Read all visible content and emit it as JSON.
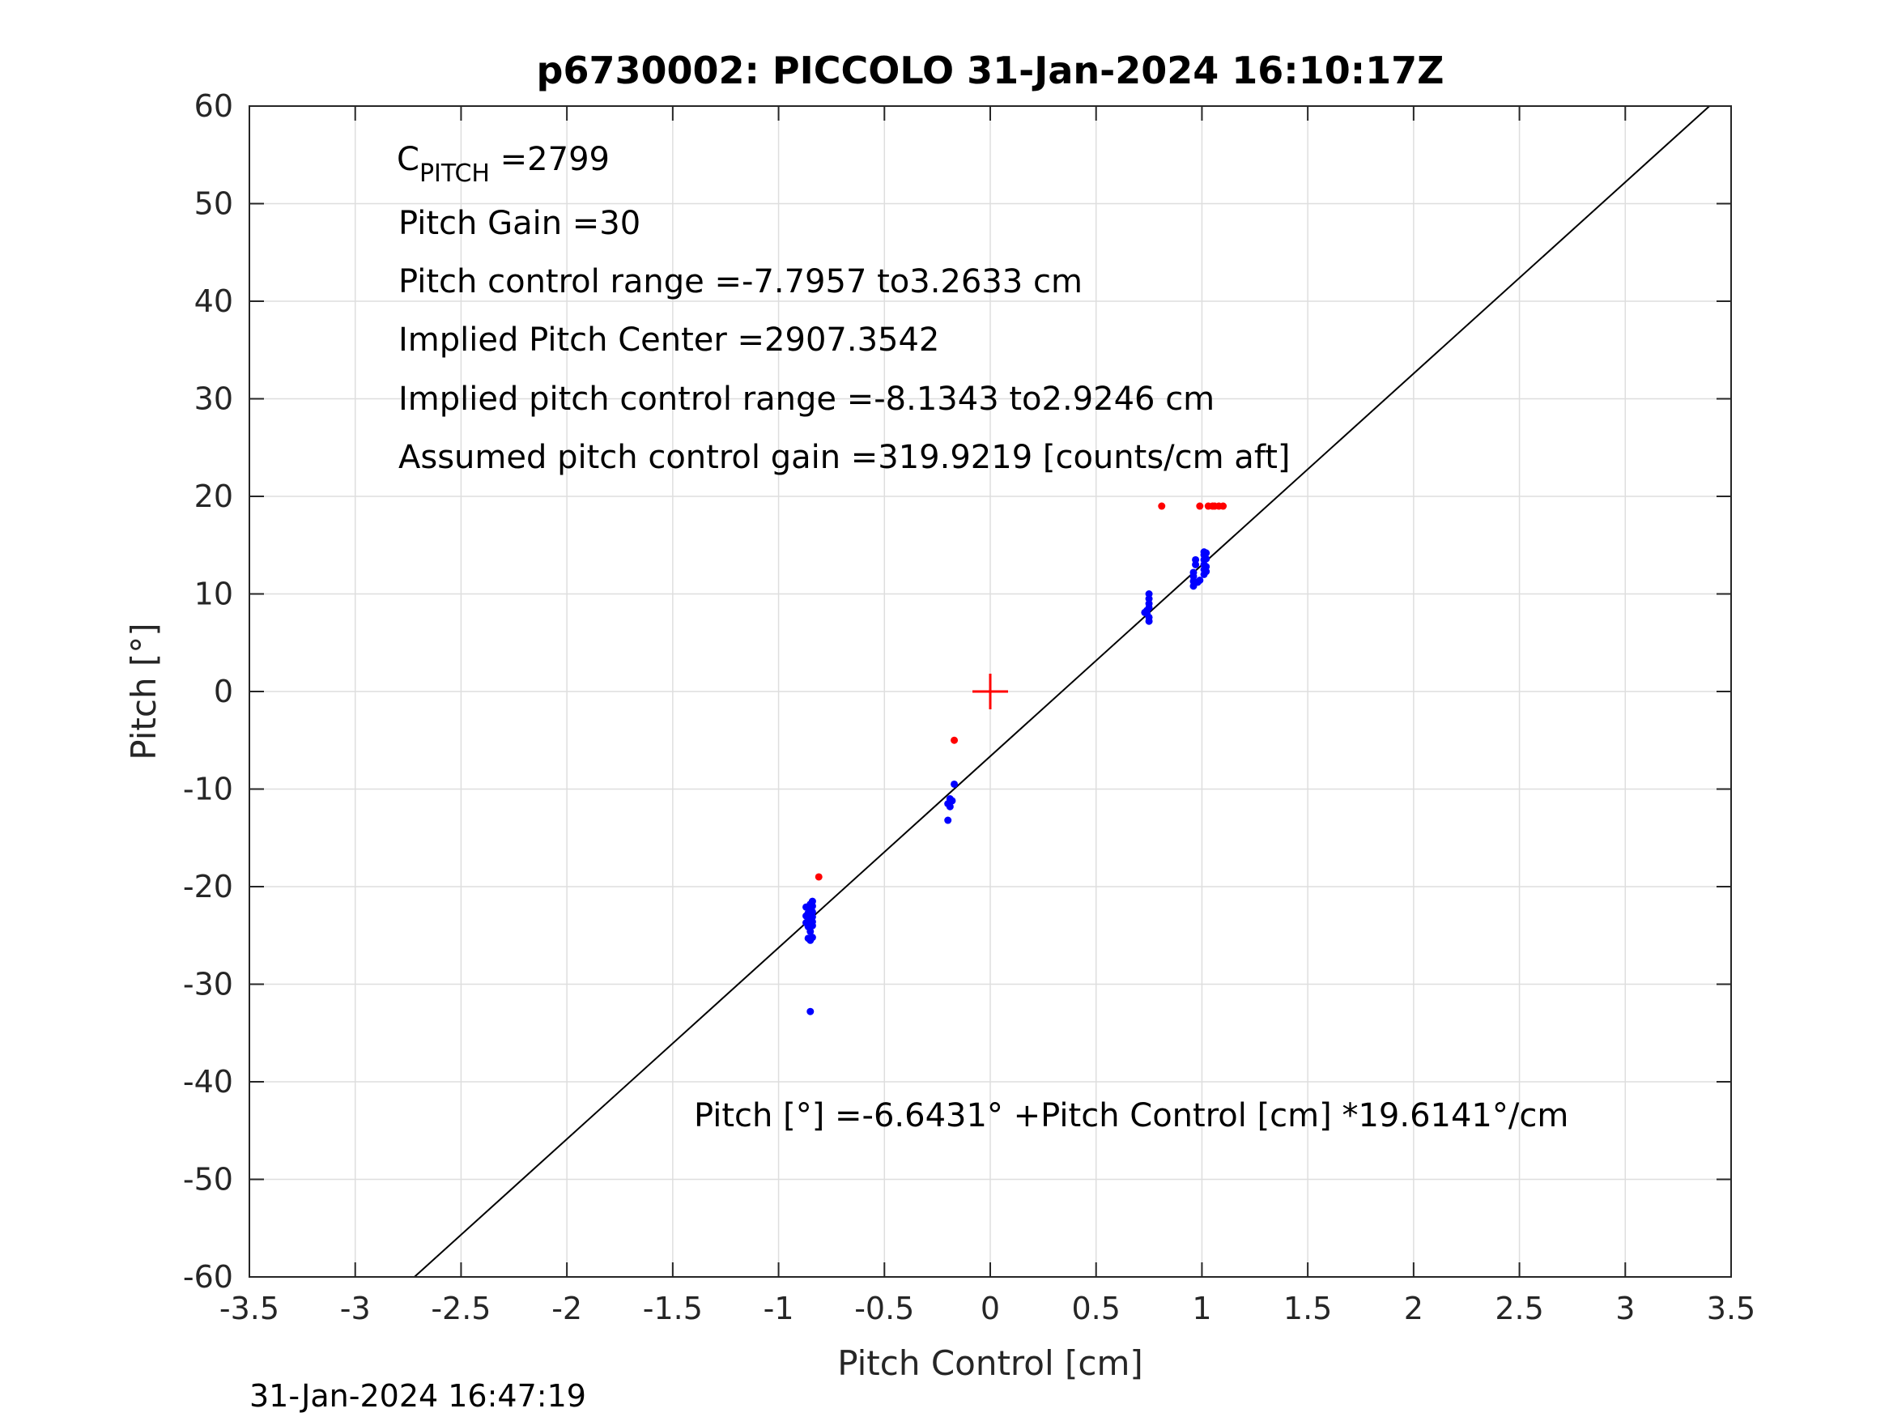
{
  "chart_data": {
    "type": "scatter",
    "title": "p6730002: PICCOLO 31-Jan-2024 16:10:17Z",
    "xlabel": "Pitch Control [cm]",
    "ylabel": "Pitch [°]",
    "xlim": [
      -3.5,
      3.5
    ],
    "ylim": [
      -60,
      60
    ],
    "xticks": [
      -3.5,
      -3,
      -2.5,
      -2,
      -1.5,
      -1,
      -0.5,
      0,
      0.5,
      1,
      1.5,
      2,
      2.5,
      3,
      3.5
    ],
    "yticks": [
      -60,
      -50,
      -40,
      -30,
      -20,
      -10,
      0,
      10,
      20,
      30,
      40,
      50,
      60
    ],
    "xtick_labels": [
      "-3.5",
      "-3",
      "-2.5",
      "-2",
      "-1.5",
      "-1",
      "-0.5",
      "0",
      "0.5",
      "1",
      "1.5",
      "2",
      "2.5",
      "3",
      "3.5"
    ],
    "ytick_labels": [
      "-60",
      "-50",
      "-40",
      "-30",
      "-20",
      "-10",
      "0",
      "10",
      "20",
      "30",
      "40",
      "50",
      "60"
    ],
    "grid": true,
    "colors": {
      "blue": "#0000ff",
      "red": "#ff0000",
      "fit": "#000000",
      "grid": "#dedede",
      "axis": "#262626"
    },
    "annotations": {
      "c_pitch_main": "C",
      "c_pitch_sub": "PITCH",
      "c_pitch_value": " =2799",
      "pitch_gain": "Pitch Gain =30",
      "pitch_control_range": "Pitch control range =-7.7957 to3.2633 cm",
      "implied_center": "Implied Pitch Center =2907.3542",
      "implied_range": "Implied pitch control range =-8.1343 to2.9246 cm",
      "assumed_gain": "Assumed pitch control gain =319.9219 [counts/cm aft]",
      "fit_equation": "Pitch [°] =-6.6431° +Pitch Control [cm] *19.6141°/cm"
    },
    "fit_line": {
      "intercept": -6.6431,
      "slope": 19.6141
    },
    "center_marker": {
      "x": 0,
      "y": 0
    },
    "series": [
      {
        "marker": "dot",
        "color": "blue",
        "points": [
          [
            -0.85,
            -21.8
          ],
          [
            -0.85,
            -22.3
          ],
          [
            -0.86,
            -22.7
          ],
          [
            -0.85,
            -23.0
          ],
          [
            -0.86,
            -23.4
          ],
          [
            -0.85,
            -23.8
          ],
          [
            -0.86,
            -24.1
          ],
          [
            -0.85,
            -24.6
          ],
          [
            -0.84,
            -21.5
          ],
          [
            -0.84,
            -22.0
          ],
          [
            -0.84,
            -22.6
          ],
          [
            -0.84,
            -23.1
          ],
          [
            -0.84,
            -23.6
          ],
          [
            -0.84,
            -24.0
          ],
          [
            -0.87,
            -22.1
          ],
          [
            -0.87,
            -23.0
          ],
          [
            -0.87,
            -23.7
          ],
          [
            -0.86,
            -25.3
          ],
          [
            -0.84,
            -25.2
          ],
          [
            -0.85,
            -25.5
          ],
          [
            -0.85,
            -32.8
          ],
          [
            -0.19,
            -11.0
          ],
          [
            -0.19,
            -11.3
          ],
          [
            -0.2,
            -11.5
          ],
          [
            -0.19,
            -11.8
          ],
          [
            -0.18,
            -11.2
          ],
          [
            -0.17,
            -9.5
          ],
          [
            -0.2,
            -13.2
          ],
          [
            0.74,
            8.0
          ],
          [
            0.74,
            8.3
          ],
          [
            0.75,
            7.2
          ],
          [
            0.75,
            7.6
          ],
          [
            0.75,
            8.6
          ],
          [
            0.75,
            9.0
          ],
          [
            0.75,
            9.5
          ],
          [
            0.75,
            10.0
          ],
          [
            0.73,
            8.1
          ],
          [
            0.96,
            10.8
          ],
          [
            0.96,
            11.3
          ],
          [
            0.96,
            11.8
          ],
          [
            0.96,
            12.2
          ],
          [
            0.97,
            13.0
          ],
          [
            0.97,
            13.5
          ],
          [
            0.98,
            11.2
          ],
          [
            0.99,
            11.4
          ],
          [
            1.01,
            12.0
          ],
          [
            1.01,
            12.5
          ],
          [
            1.01,
            13.0
          ],
          [
            1.01,
            13.5
          ],
          [
            1.01,
            14.0
          ],
          [
            1.01,
            14.3
          ],
          [
            1.02,
            12.3
          ],
          [
            1.02,
            12.8
          ],
          [
            1.02,
            13.6
          ],
          [
            1.02,
            14.2
          ]
        ]
      },
      {
        "marker": "dot",
        "color": "red",
        "points": [
          [
            -0.81,
            -19.0
          ],
          [
            -0.17,
            -5.0
          ],
          [
            0.81,
            19.0
          ],
          [
            0.99,
            19.0
          ],
          [
            1.03,
            19.0
          ],
          [
            1.05,
            19.0
          ],
          [
            1.06,
            19.0
          ],
          [
            1.08,
            19.0
          ],
          [
            1.1,
            19.0
          ]
        ]
      }
    ]
  },
  "footer": {
    "timestamp": "31-Jan-2024 16:47:19"
  }
}
